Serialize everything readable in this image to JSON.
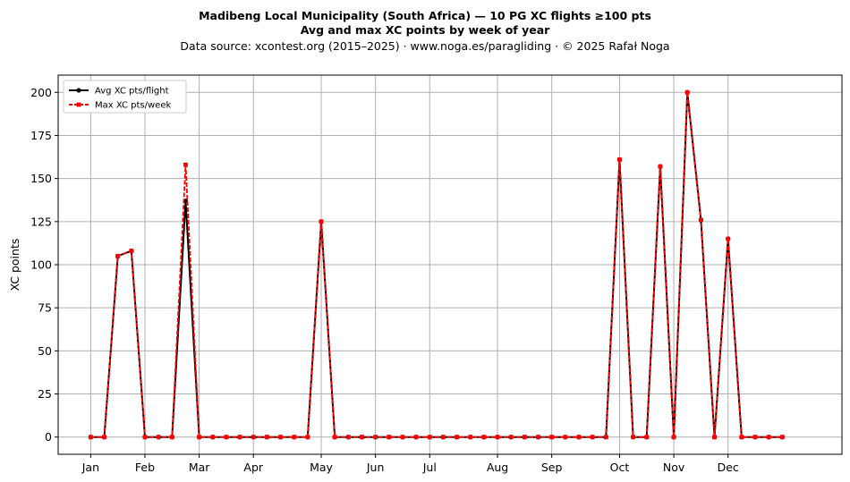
{
  "chart_data": {
    "type": "line",
    "title": "Madibeng Local Municipality (South Africa)  —  10 PG XC flights ≥100 pts",
    "subtitle": "Avg and max XC points by week of year",
    "source_line": "Data source: xcontest.org (2015–2025)  ·  www.noga.es/paragliding  ·  © 2025 Rafał Noga",
    "ylabel": "XC points",
    "xlabel": "",
    "ylim": [
      -10,
      210
    ],
    "xlim": [
      -2.4,
      55.4
    ],
    "yticks": [
      0,
      25,
      50,
      75,
      100,
      125,
      150,
      175,
      200
    ],
    "month_ticks": [
      {
        "label": "Jan",
        "week": 0
      },
      {
        "label": "Feb",
        "week": 4
      },
      {
        "label": "Mar",
        "week": 8
      },
      {
        "label": "Apr",
        "week": 12
      },
      {
        "label": "May",
        "week": 17
      },
      {
        "label": "Jun",
        "week": 21
      },
      {
        "label": "Jul",
        "week": 25
      },
      {
        "label": "Aug",
        "week": 30
      },
      {
        "label": "Sep",
        "week": 34
      },
      {
        "label": "Oct",
        "week": 39
      },
      {
        "label": "Nov",
        "week": 43
      },
      {
        "label": "Dec",
        "week": 47
      }
    ],
    "grid": true,
    "legend_position": "top-left",
    "x": [
      0,
      1,
      2,
      3,
      4,
      5,
      6,
      7,
      8,
      9,
      10,
      11,
      12,
      13,
      14,
      15,
      16,
      17,
      18,
      19,
      20,
      21,
      22,
      23,
      24,
      25,
      26,
      27,
      28,
      29,
      30,
      31,
      32,
      33,
      34,
      35,
      36,
      37,
      38,
      39,
      40,
      41,
      42,
      43,
      44,
      45,
      46,
      47,
      48,
      49,
      50,
      51
    ],
    "series": [
      {
        "name": "Avg XC pts/flight",
        "color": "#000000",
        "style": "solid",
        "marker": "circle",
        "values": [
          0,
          0,
          105,
          108,
          0,
          0,
          0,
          137,
          0,
          0,
          0,
          0,
          0,
          0,
          0,
          0,
          0,
          125,
          0,
          0,
          0,
          0,
          0,
          0,
          0,
          0,
          0,
          0,
          0,
          0,
          0,
          0,
          0,
          0,
          0,
          0,
          0,
          0,
          0,
          161,
          0,
          0,
          157,
          0,
          200,
          126,
          0,
          115,
          0,
          0,
          0,
          0
        ]
      },
      {
        "name": "Max XC pts/week",
        "color": "#ff0000",
        "style": "dashed",
        "marker": "square",
        "values": [
          0,
          0,
          105,
          108,
          0,
          0,
          0,
          158,
          0,
          0,
          0,
          0,
          0,
          0,
          0,
          0,
          0,
          125,
          0,
          0,
          0,
          0,
          0,
          0,
          0,
          0,
          0,
          0,
          0,
          0,
          0,
          0,
          0,
          0,
          0,
          0,
          0,
          0,
          0,
          161,
          0,
          0,
          157,
          0,
          200,
          126,
          0,
          115,
          0,
          0,
          0,
          0
        ]
      }
    ]
  }
}
